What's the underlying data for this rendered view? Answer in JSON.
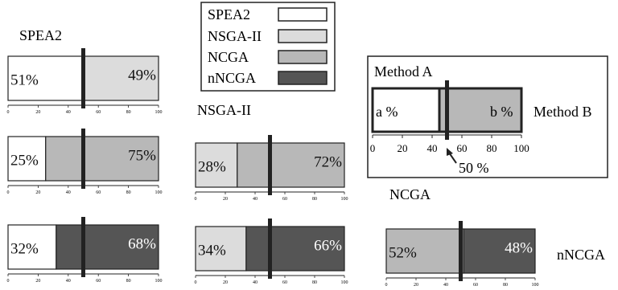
{
  "colors": {
    "SPEA2": "#ffffff",
    "NSGA-II": "#dcdcdc",
    "NCGA": "#b8b8b8",
    "nNCGA": "#555555",
    "divider": "#222222",
    "frame": "#222222"
  },
  "legend": {
    "entries": [
      {
        "name": "SPEA2",
        "color": "#ffffff"
      },
      {
        "name": "NSGA-II",
        "color": "#dcdcdc"
      },
      {
        "name": "NCGA",
        "color": "#b8b8b8"
      },
      {
        "name": "nNCGA",
        "color": "#555555"
      }
    ]
  },
  "row_labels": [
    "SPEA2",
    "NSGA-II",
    "NCGA"
  ],
  "col_label_right": "nNCGA",
  "explainer": {
    "method_a": "Method A",
    "method_b": "Method B",
    "left_text": "a %",
    "right_text": "b %",
    "mid_label": "50 %",
    "ticks": [
      "0",
      "20",
      "40",
      "60",
      "80",
      "100"
    ]
  },
  "chart_data": {
    "type": "bar",
    "subtype": "stacked-100-percent-comparison",
    "x_ticks": [
      0,
      20,
      40,
      60,
      80,
      100
    ],
    "xlim": [
      0,
      100
    ],
    "reference_line": 50,
    "comparisons": [
      {
        "left": "SPEA2",
        "right": "NSGA-II",
        "left_value": 51,
        "right_value": 49,
        "left_label": "51%",
        "right_label": "49%"
      },
      {
        "left": "SPEA2",
        "right": "NCGA",
        "left_value": 25,
        "right_value": 75,
        "left_label": "25%",
        "right_label": "75%"
      },
      {
        "left": "SPEA2",
        "right": "nNCGA",
        "left_value": 32,
        "right_value": 68,
        "left_label": "32%",
        "right_label": "68%"
      },
      {
        "left": "NSGA-II",
        "right": "NCGA",
        "left_value": 28,
        "right_value": 72,
        "left_label": "28%",
        "right_label": "72%"
      },
      {
        "left": "NSGA-II",
        "right": "nNCGA",
        "left_value": 34,
        "right_value": 66,
        "left_label": "34%",
        "right_label": "66%"
      },
      {
        "left": "NCGA",
        "right": "nNCGA",
        "left_value": 52,
        "right_value": 48,
        "left_label": "52%",
        "right_label": "48%"
      }
    ]
  }
}
